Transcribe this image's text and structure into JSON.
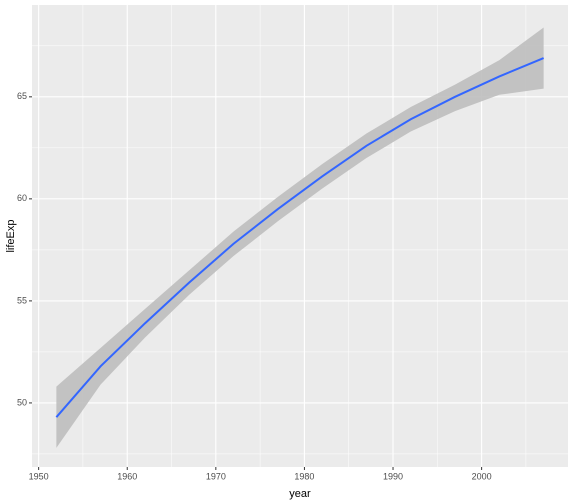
{
  "chart_data": {
    "type": "smooth",
    "x_label": "year",
    "y_label": "lifeExp",
    "x": [
      1952,
      1957,
      1962,
      1967,
      1972,
      1977,
      1982,
      1987,
      1992,
      1997,
      2002,
      2007
    ],
    "values": [
      49.3,
      51.8,
      53.9,
      55.9,
      57.8,
      59.5,
      61.1,
      62.6,
      63.9,
      65.0,
      66.0,
      66.9
    ],
    "lower": [
      47.8,
      50.9,
      53.2,
      55.3,
      57.2,
      58.9,
      60.5,
      62.0,
      63.3,
      64.3,
      65.1,
      65.4
    ],
    "upper": [
      50.8,
      52.7,
      54.6,
      56.5,
      58.4,
      60.1,
      61.7,
      63.2,
      64.5,
      65.6,
      66.8,
      68.4
    ],
    "color": "#3366ff",
    "band_color": "#bebebe",
    "panel_color": "#ebebeb",
    "xlim": [
      1949.25,
      2009.75
    ],
    "xticks": [
      1950,
      1960,
      1970,
      1980,
      1990,
      2000
    ],
    "x_minor_ticks": [
      1955,
      1965,
      1975,
      1985,
      1995,
      2005
    ],
    "ylim": [
      46.86,
      69.5
    ],
    "yticks": [
      50,
      55,
      60,
      65
    ],
    "y_minor_ticks": [
      47.5,
      52.5,
      57.5,
      62.5,
      67.5
    ],
    "grid": true
  }
}
